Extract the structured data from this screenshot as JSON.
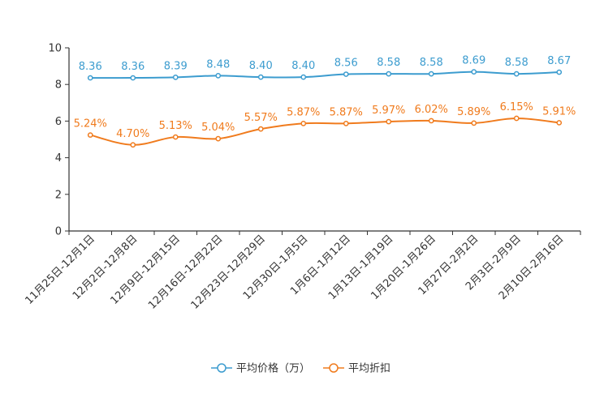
{
  "chart_data": {
    "type": "line",
    "title": "",
    "xlabel": "",
    "ylabel": "",
    "ylim": [
      0,
      10
    ],
    "yticks": [
      0,
      2,
      4,
      6,
      8,
      10
    ],
    "grid": false,
    "legend_position": "bottom-center",
    "categories": [
      "11月25日-12月1日",
      "12月2日-12月8日",
      "12月9日-12月15日",
      "12月16日-12月22日",
      "12月23日-12月29日",
      "12月30日-1月5日",
      "1月6日-1月12日",
      "1月13日-1月19日",
      "1月20日-1月26日",
      "1月27日-2月2日",
      "2月3日-2月9日",
      "2月10日-2月16日"
    ],
    "series": [
      {
        "name": "平均价格（万）",
        "color": "#3c9ccf",
        "values": [
          8.36,
          8.36,
          8.39,
          8.48,
          8.4,
          8.4,
          8.56,
          8.58,
          8.58,
          8.69,
          8.58,
          8.67
        ],
        "labels": [
          "8.36",
          "8.36",
          "8.39",
          "8.48",
          "8.40",
          "8.40",
          "8.56",
          "8.58",
          "8.58",
          "8.69",
          "8.58",
          "8.67"
        ]
      },
      {
        "name": "平均折扣",
        "color": "#f07b1d",
        "values": [
          5.24,
          4.7,
          5.13,
          5.04,
          5.57,
          5.87,
          5.87,
          5.97,
          6.02,
          5.89,
          6.15,
          5.91
        ],
        "labels": [
          "5.24%",
          "4.70%",
          "5.13%",
          "5.04%",
          "5.57%",
          "5.87%",
          "5.87%",
          "5.97%",
          "6.02%",
          "5.89%",
          "6.15%",
          "5.91%"
        ]
      }
    ]
  }
}
